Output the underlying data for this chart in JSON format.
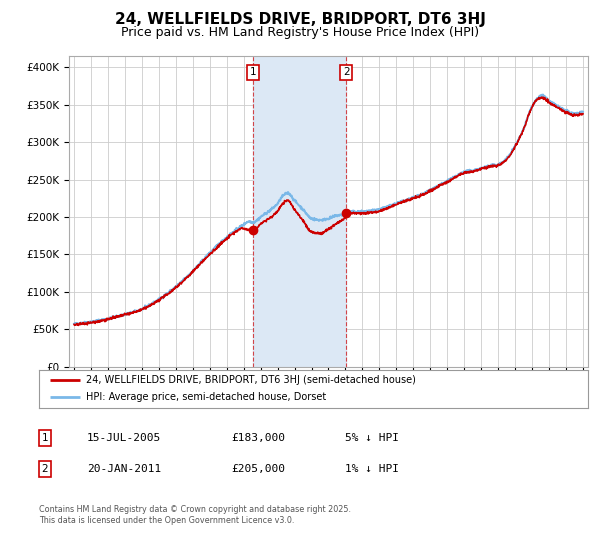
{
  "title": "24, WELLFIELDS DRIVE, BRIDPORT, DT6 3HJ",
  "subtitle": "Price paid vs. HM Land Registry's House Price Index (HPI)",
  "title_fontsize": 11,
  "subtitle_fontsize": 9,
  "ylabel_ticks": [
    "£0",
    "£50K",
    "£100K",
    "£150K",
    "£200K",
    "£250K",
    "£300K",
    "£350K",
    "£400K"
  ],
  "ytick_values": [
    0,
    50000,
    100000,
    150000,
    200000,
    250000,
    300000,
    350000,
    400000
  ],
  "ylim": [
    0,
    415000
  ],
  "xlim_start": 1994.7,
  "xlim_end": 2025.3,
  "hpi_color": "#7ab8e8",
  "price_color": "#cc0000",
  "bg_color": "#ffffff",
  "plot_bg": "#ffffff",
  "grid_color": "#cccccc",
  "span_color": "#dce8f5",
  "purchase1_x": 2005.54,
  "purchase1_y": 183000,
  "purchase1_label": "1",
  "purchase1_date": "15-JUL-2005",
  "purchase1_price": "£183,000",
  "purchase1_hpi": "5% ↓ HPI",
  "purchase2_x": 2011.05,
  "purchase2_y": 205000,
  "purchase2_label": "2",
  "purchase2_date": "20-JAN-2011",
  "purchase2_price": "£205,000",
  "purchase2_hpi": "1% ↓ HPI",
  "legend_line1": "24, WELLFIELDS DRIVE, BRIDPORT, DT6 3HJ (semi-detached house)",
  "legend_line2": "HPI: Average price, semi-detached house, Dorset",
  "footer": "Contains HM Land Registry data © Crown copyright and database right 2025.\nThis data is licensed under the Open Government Licence v3.0."
}
